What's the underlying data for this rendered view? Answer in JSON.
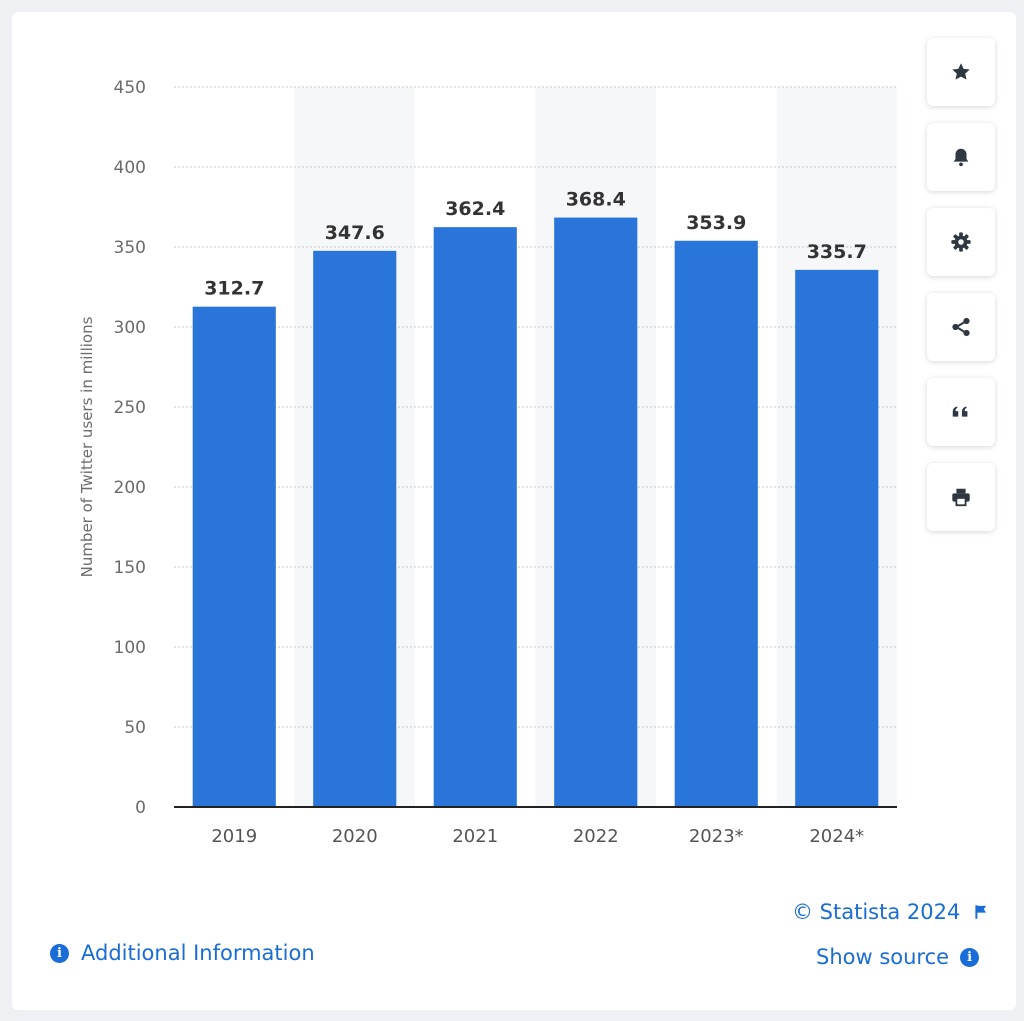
{
  "chart_data": {
    "type": "bar",
    "categories": [
      "2019",
      "2020",
      "2021",
      "2022",
      "2023*",
      "2024*"
    ],
    "values": [
      312.7,
      347.6,
      362.4,
      368.4,
      353.9,
      335.7
    ],
    "value_labels": [
      "312.7",
      "347.6",
      "362.4",
      "368.4",
      "353.9",
      "335.7"
    ],
    "title": "",
    "xlabel": "",
    "ylabel": "Number of Twitter users in millions",
    "ylim": [
      0,
      450
    ],
    "yticks": [
      0,
      50,
      100,
      150,
      200,
      250,
      300,
      350,
      400,
      450
    ],
    "grid": true,
    "bar_color": "#2a75d9"
  },
  "toolbar": {
    "icons": [
      "star-icon",
      "bell-icon",
      "gear-icon",
      "share-icon",
      "quote-icon",
      "print-icon"
    ]
  },
  "footer": {
    "copyright": "© Statista 2024",
    "show_source": "Show source",
    "additional_info": "Additional Information"
  },
  "colors": {
    "accent": "#1a6cd6",
    "bar": "#2a75d9"
  }
}
